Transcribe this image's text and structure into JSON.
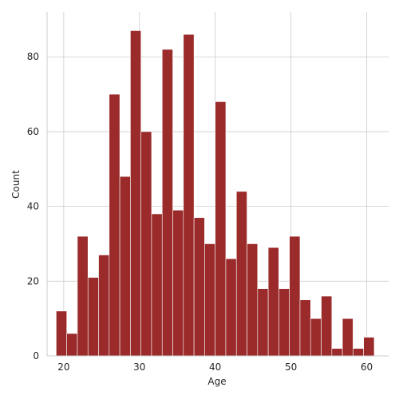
{
  "chart_data": {
    "type": "bar",
    "subtype": "histogram",
    "title": "",
    "xlabel": "Age",
    "ylabel": "Count",
    "xlim": [
      17.8,
      62.9
    ],
    "ylim": [
      0,
      92
    ],
    "xticks": [
      20,
      30,
      40,
      50,
      60
    ],
    "yticks": [
      0,
      20,
      40,
      60,
      80
    ],
    "grid": true,
    "bar_color": "#9b2a2a",
    "bin_edges": [
      19,
      20.4,
      21.8,
      23.2,
      24.6,
      26,
      27.4,
      28.8,
      30.2,
      31.6,
      33,
      34.4,
      35.8,
      37.2,
      38.6,
      40,
      41.4,
      42.8,
      44.2,
      45.6,
      47,
      48.4,
      49.8,
      51.2,
      52.6,
      54,
      55.4,
      56.8,
      58.2,
      59.6,
      61
    ],
    "values": [
      12,
      6,
      32,
      21,
      27,
      70,
      48,
      87,
      60,
      38,
      82,
      39,
      86,
      37,
      30,
      68,
      26,
      44,
      30,
      18,
      29,
      18,
      32,
      15,
      10,
      16,
      2,
      10,
      2,
      5
    ]
  }
}
